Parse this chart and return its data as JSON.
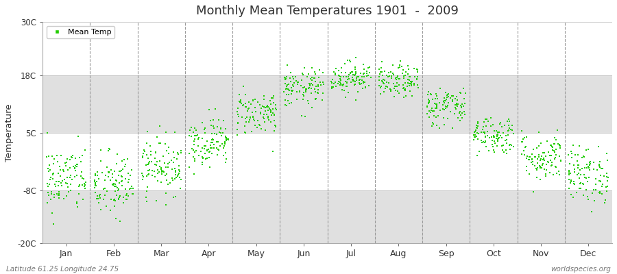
{
  "title": "Monthly Mean Temperatures 1901  -  2009",
  "ylabel": "Temperature",
  "ylim": [
    -20,
    30
  ],
  "yticks": [
    -20,
    -8,
    5,
    18,
    30
  ],
  "ytick_labels": [
    "-20C",
    "-8C",
    "5C",
    "18C",
    "30C"
  ],
  "months": [
    "Jan",
    "Feb",
    "Mar",
    "Apr",
    "May",
    "Jun",
    "Jul",
    "Aug",
    "Sep",
    "Oct",
    "Nov",
    "Dec"
  ],
  "n_years": 109,
  "seed": 42,
  "dot_color": "#22CC00",
  "dot_size": 3,
  "bg_color": "#F0F0F0",
  "band_color": "#E0E0E0",
  "fig_bg_color": "#FFFFFF",
  "legend_label": "Mean Temp",
  "bottom_left": "Latitude 61.25 Longitude 24.75",
  "bottom_right": "worldspecies.org",
  "monthly_means": [
    -5.5,
    -7.0,
    -2.5,
    3.0,
    9.5,
    15.0,
    17.5,
    16.5,
    11.0,
    4.5,
    -0.5,
    -4.5
  ],
  "monthly_stds": [
    3.8,
    3.8,
    3.2,
    2.8,
    2.5,
    2.2,
    1.8,
    1.8,
    2.2,
    2.2,
    2.8,
    3.2
  ]
}
